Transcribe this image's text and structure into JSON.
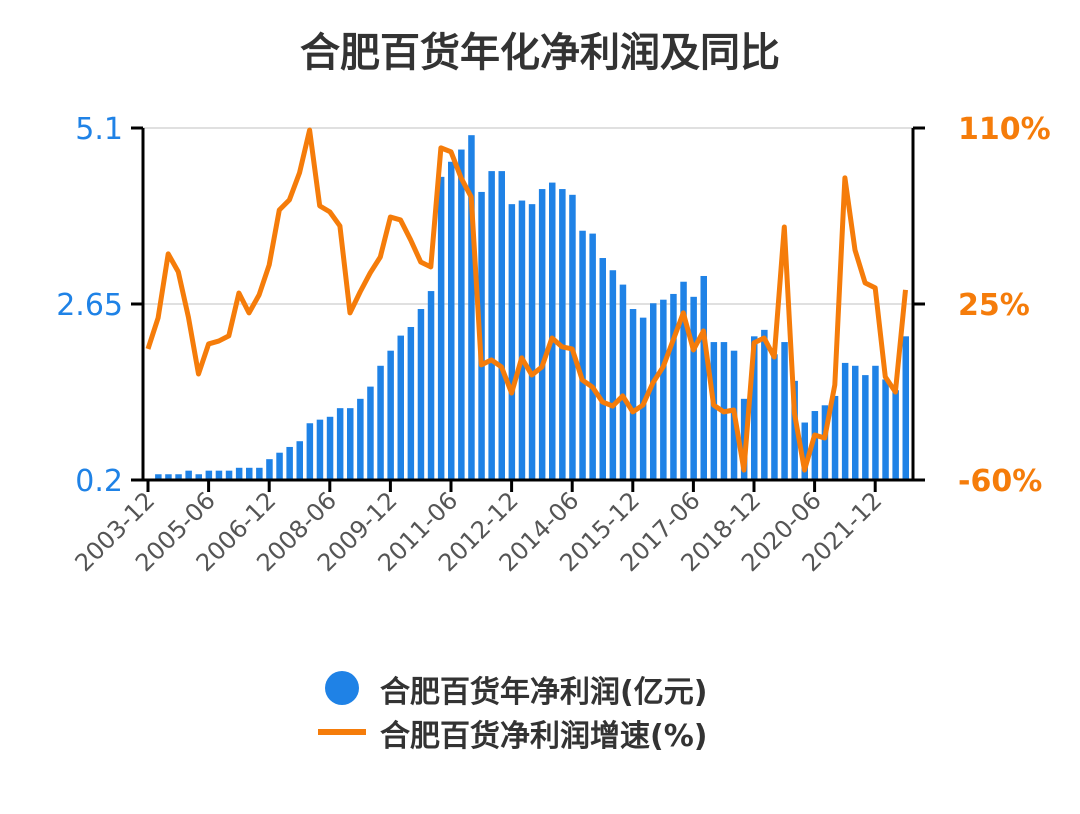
{
  "chart_data": {
    "type": "bar+line",
    "title": "合肥百货年化净利润及同比",
    "colors": {
      "bars": "#1f82e6",
      "line": "#f57c0a",
      "left_axis": "#1f82e6",
      "right_axis": "#f57c0a"
    },
    "grid": true,
    "legend_placement": "bottom",
    "y_left": {
      "ticks": [
        "0.2",
        "2.65",
        "5.1"
      ],
      "range": [
        0.2,
        5.1
      ]
    },
    "y_right": {
      "ticks": [
        "-60%",
        "25%",
        "110%"
      ],
      "range": [
        -60,
        110
      ]
    },
    "x_tick_labels": [
      "2003-12",
      "2005-06",
      "2006-12",
      "2008-06",
      "2009-12",
      "2011-06",
      "2012-12",
      "2014-06",
      "2015-12",
      "2017-06",
      "2018-12",
      "2020-06",
      "2021-12"
    ],
    "x": [
      "2003-12",
      "2004-03",
      "2004-06",
      "2004-09",
      "2004-12",
      "2005-03",
      "2005-06",
      "2005-09",
      "2005-12",
      "2006-03",
      "2006-06",
      "2006-09",
      "2006-12",
      "2007-03",
      "2007-06",
      "2007-09",
      "2007-12",
      "2008-03",
      "2008-06",
      "2008-09",
      "2008-12",
      "2009-03",
      "2009-06",
      "2009-09",
      "2009-12",
      "2010-03",
      "2010-06",
      "2010-09",
      "2010-12",
      "2011-03",
      "2011-06",
      "2011-09",
      "2011-12",
      "2012-03",
      "2012-06",
      "2012-09",
      "2012-12",
      "2013-03",
      "2013-06",
      "2013-09",
      "2013-12",
      "2014-03",
      "2014-06",
      "2014-09",
      "2014-12",
      "2015-03",
      "2015-06",
      "2015-09",
      "2015-12",
      "2016-03",
      "2016-06",
      "2016-09",
      "2016-12",
      "2017-03",
      "2017-06",
      "2017-09",
      "2017-12",
      "2018-03",
      "2018-06",
      "2018-09",
      "2018-12",
      "2019-03",
      "2019-06",
      "2019-09",
      "2019-12",
      "2020-03",
      "2020-06",
      "2020-09",
      "2020-12",
      "2021-03",
      "2021-06",
      "2021-09",
      "2021-12",
      "2022-03",
      "2022-06",
      "2022-09"
    ],
    "series": [
      {
        "name": "合肥百货年净利润(亿元)",
        "type": "bar",
        "axis": "left",
        "values": [
          0.22,
          0.28,
          0.28,
          0.28,
          0.33,
          0.28,
          0.33,
          0.33,
          0.33,
          0.37,
          0.37,
          0.37,
          0.49,
          0.58,
          0.66,
          0.74,
          0.99,
          1.04,
          1.08,
          1.2,
          1.2,
          1.33,
          1.5,
          1.79,
          2.0,
          2.21,
          2.33,
          2.58,
          2.83,
          4.42,
          4.63,
          4.8,
          5.0,
          4.21,
          4.5,
          4.5,
          4.04,
          4.09,
          4.04,
          4.25,
          4.34,
          4.25,
          4.17,
          3.67,
          3.63,
          3.29,
          3.12,
          2.92,
          2.58,
          2.46,
          2.66,
          2.71,
          2.79,
          2.96,
          2.75,
          3.04,
          2.12,
          2.12,
          2.0,
          1.33,
          2.2,
          2.29,
          1.95,
          2.12,
          1.58,
          1.0,
          1.16,
          1.24,
          1.37,
          1.83,
          1.79,
          1.66,
          1.79,
          1.6,
          1.45,
          2.2
        ]
      },
      {
        "name": "合肥百货净利润增速(%)",
        "type": "line",
        "axis": "right",
        "values": [
          3.3,
          18.3,
          49.2,
          40.5,
          18.7,
          -8.8,
          5.7,
          7.1,
          9.6,
          30.3,
          20.7,
          29.4,
          43.9,
          70.4,
          75.3,
          88.3,
          109,
          72.4,
          69.5,
          62.7,
          20.7,
          30.8,
          40,
          47.7,
          67,
          65.6,
          56,
          45.3,
          42.9,
          100.4,
          98.5,
          85.9,
          76.7,
          -4.4,
          -2,
          -5.4,
          -18,
          -1,
          -9.3,
          -5.4,
          8.6,
          4.3,
          3.3,
          -11.7,
          -15.1,
          -22.3,
          -24.3,
          -19.4,
          -27.1,
          -23.8,
          -13,
          -5.4,
          7.6,
          20.7,
          2.8,
          12,
          -23.8,
          -27.1,
          -26.2,
          -55.2,
          6.2,
          8.6,
          -0.6,
          62.2,
          -27.6,
          -55.2,
          -38.3,
          -39.7,
          -14.1,
          85.9,
          51.1,
          35.2,
          32.8,
          -10.2,
          -17.5,
          31.8
        ]
      }
    ]
  }
}
